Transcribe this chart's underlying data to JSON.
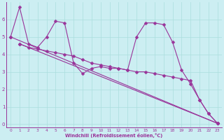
{
  "background_color": "#cceef2",
  "grid_color": "#aadddd",
  "line_color": "#993399",
  "marker": "D",
  "markersize": 2.5,
  "linewidth": 0.8,
  "xlabel": "Windchill (Refroidissement éolien,°C)",
  "xlim": [
    -0.5,
    23.5
  ],
  "ylim": [
    -0.2,
    7.0
  ],
  "xticks": [
    0,
    1,
    2,
    3,
    4,
    5,
    6,
    7,
    8,
    9,
    10,
    11,
    12,
    13,
    14,
    15,
    16,
    17,
    18,
    19,
    20,
    21,
    22,
    23
  ],
  "yticks": [
    0,
    1,
    2,
    3,
    4,
    5,
    6
  ],
  "lines": [
    {
      "x": [
        0,
        1,
        2,
        3,
        4,
        5,
        6,
        7,
        8,
        9,
        10,
        11,
        12,
        13,
        14,
        15,
        16,
        17,
        18,
        19,
        20,
        21,
        22,
        23
      ],
      "y": [
        5.0,
        6.7,
        4.6,
        4.4,
        5.0,
        5.9,
        5.8,
        3.5,
        2.9,
        3.2,
        3.3,
        3.2,
        3.2,
        3.1,
        5.0,
        5.8,
        5.8,
        5.7,
        4.7,
        3.1,
        2.3,
        1.4,
        0.6,
        0.05
      ]
    },
    {
      "x": [
        1,
        2,
        3,
        4,
        5,
        6,
        7,
        8,
        9,
        10,
        11,
        12,
        13,
        14,
        15,
        16,
        17,
        18,
        19,
        20,
        21,
        22,
        23
      ],
      "y": [
        4.6,
        4.4,
        4.3,
        4.2,
        4.1,
        4.0,
        3.9,
        3.7,
        3.5,
        3.4,
        3.3,
        3.2,
        3.1,
        3.0,
        3.0,
        2.9,
        2.8,
        2.7,
        2.6,
        2.5,
        1.4,
        0.6,
        0.05
      ]
    },
    {
      "x": [
        1,
        23
      ],
      "y": [
        4.6,
        0.05
      ]
    },
    {
      "x": [
        0,
        23
      ],
      "y": [
        5.0,
        0.05
      ]
    }
  ]
}
